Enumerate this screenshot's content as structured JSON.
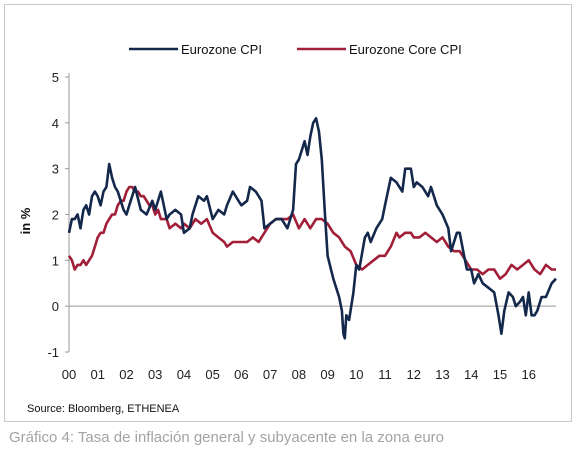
{
  "chart_data": {
    "type": "line",
    "title": "",
    "xlabel": "",
    "ylabel": "in %",
    "ylim": [
      -1,
      5
    ],
    "xlim": [
      2000,
      2016.95
    ],
    "y_ticks": [
      "5",
      "4",
      "3",
      "2",
      "1",
      "0",
      "-1"
    ],
    "x_ticks": [
      "00",
      "01",
      "02",
      "03",
      "04",
      "05",
      "06",
      "07",
      "08",
      "09",
      "10",
      "11",
      "12",
      "13",
      "14",
      "15",
      "16"
    ],
    "legend": "top-center",
    "grid": false,
    "series": [
      {
        "name": "Eurozone CPI",
        "color": "#14284b",
        "points": [
          [
            2000.0,
            1.6
          ],
          [
            2000.1,
            1.9
          ],
          [
            2000.2,
            1.9
          ],
          [
            2000.3,
            2.0
          ],
          [
            2000.4,
            1.7
          ],
          [
            2000.5,
            2.1
          ],
          [
            2000.6,
            2.2
          ],
          [
            2000.7,
            2.0
          ],
          [
            2000.8,
            2.4
          ],
          [
            2000.9,
            2.5
          ],
          [
            2001.0,
            2.4
          ],
          [
            2001.1,
            2.2
          ],
          [
            2001.2,
            2.5
          ],
          [
            2001.3,
            2.6
          ],
          [
            2001.4,
            3.1
          ],
          [
            2001.5,
            2.8
          ],
          [
            2001.6,
            2.6
          ],
          [
            2001.7,
            2.5
          ],
          [
            2001.8,
            2.3
          ],
          [
            2001.9,
            2.1
          ],
          [
            2002.0,
            2.0
          ],
          [
            2002.1,
            2.2
          ],
          [
            2002.3,
            2.6
          ],
          [
            2002.5,
            2.1
          ],
          [
            2002.7,
            2.0
          ],
          [
            2002.9,
            2.3
          ],
          [
            2003.0,
            2.1
          ],
          [
            2003.2,
            2.5
          ],
          [
            2003.4,
            1.9
          ],
          [
            2003.5,
            2.0
          ],
          [
            2003.7,
            2.1
          ],
          [
            2003.9,
            2.0
          ],
          [
            2004.0,
            1.6
          ],
          [
            2004.2,
            1.7
          ],
          [
            2004.3,
            2.0
          ],
          [
            2004.5,
            2.4
          ],
          [
            2004.7,
            2.3
          ],
          [
            2004.8,
            2.4
          ],
          [
            2005.0,
            1.9
          ],
          [
            2005.2,
            2.1
          ],
          [
            2005.4,
            2.0
          ],
          [
            2005.5,
            2.2
          ],
          [
            2005.7,
            2.5
          ],
          [
            2005.9,
            2.3
          ],
          [
            2006.0,
            2.2
          ],
          [
            2006.2,
            2.3
          ],
          [
            2006.3,
            2.6
          ],
          [
            2006.5,
            2.5
          ],
          [
            2006.7,
            2.3
          ],
          [
            2006.8,
            1.7
          ],
          [
            2007.0,
            1.8
          ],
          [
            2007.2,
            1.9
          ],
          [
            2007.4,
            1.9
          ],
          [
            2007.6,
            1.7
          ],
          [
            2007.8,
            2.1
          ],
          [
            2007.9,
            3.1
          ],
          [
            2008.0,
            3.2
          ],
          [
            2008.2,
            3.6
          ],
          [
            2008.3,
            3.3
          ],
          [
            2008.4,
            3.7
          ],
          [
            2008.5,
            4.0
          ],
          [
            2008.6,
            4.1
          ],
          [
            2008.7,
            3.8
          ],
          [
            2008.8,
            3.2
          ],
          [
            2008.9,
            2.1
          ],
          [
            2009.0,
            1.1
          ],
          [
            2009.2,
            0.6
          ],
          [
            2009.4,
            0.2
          ],
          [
            2009.5,
            -0.1
          ],
          [
            2009.55,
            -0.6
          ],
          [
            2009.6,
            -0.7
          ],
          [
            2009.65,
            -0.2
          ],
          [
            2009.75,
            -0.3
          ],
          [
            2009.9,
            0.3
          ],
          [
            2010.0,
            0.9
          ],
          [
            2010.1,
            0.8
          ],
          [
            2010.3,
            1.5
          ],
          [
            2010.4,
            1.6
          ],
          [
            2010.5,
            1.4
          ],
          [
            2010.7,
            1.7
          ],
          [
            2010.9,
            1.9
          ],
          [
            2011.0,
            2.2
          ],
          [
            2011.2,
            2.8
          ],
          [
            2011.4,
            2.7
          ],
          [
            2011.6,
            2.5
          ],
          [
            2011.7,
            3.0
          ],
          [
            2011.9,
            3.0
          ],
          [
            2012.0,
            2.6
          ],
          [
            2012.1,
            2.7
          ],
          [
            2012.3,
            2.6
          ],
          [
            2012.5,
            2.4
          ],
          [
            2012.6,
            2.6
          ],
          [
            2012.8,
            2.2
          ],
          [
            2013.0,
            2.0
          ],
          [
            2013.2,
            1.7
          ],
          [
            2013.3,
            1.2
          ],
          [
            2013.5,
            1.6
          ],
          [
            2013.6,
            1.6
          ],
          [
            2013.75,
            1.1
          ],
          [
            2013.85,
            0.8
          ],
          [
            2014.0,
            0.8
          ],
          [
            2014.1,
            0.5
          ],
          [
            2014.25,
            0.7
          ],
          [
            2014.4,
            0.5
          ],
          [
            2014.6,
            0.4
          ],
          [
            2014.8,
            0.3
          ],
          [
            2014.95,
            -0.2
          ],
          [
            2015.05,
            -0.6
          ],
          [
            2015.15,
            -0.1
          ],
          [
            2015.3,
            0.3
          ],
          [
            2015.45,
            0.2
          ],
          [
            2015.55,
            0.0
          ],
          [
            2015.7,
            0.1
          ],
          [
            2015.8,
            0.2
          ],
          [
            2015.9,
            -0.2
          ],
          [
            2016.0,
            0.3
          ],
          [
            2016.1,
            -0.2
          ],
          [
            2016.2,
            -0.2
          ],
          [
            2016.3,
            -0.1
          ],
          [
            2016.45,
            0.2
          ],
          [
            2016.6,
            0.2
          ],
          [
            2016.8,
            0.5
          ],
          [
            2016.95,
            0.6
          ]
        ]
      },
      {
        "name": "Eurozone Core CPI",
        "color": "#a21f3a",
        "points": [
          [
            2000.0,
            1.1
          ],
          [
            2000.1,
            1.0
          ],
          [
            2000.2,
            0.8
          ],
          [
            2000.3,
            0.9
          ],
          [
            2000.4,
            0.9
          ],
          [
            2000.5,
            1.0
          ],
          [
            2000.6,
            0.9
          ],
          [
            2000.7,
            1.0
          ],
          [
            2000.8,
            1.1
          ],
          [
            2000.9,
            1.3
          ],
          [
            2001.0,
            1.5
          ],
          [
            2001.1,
            1.6
          ],
          [
            2001.2,
            1.6
          ],
          [
            2001.3,
            1.8
          ],
          [
            2001.4,
            1.9
          ],
          [
            2001.5,
            2.0
          ],
          [
            2001.6,
            2.0
          ],
          [
            2001.7,
            2.2
          ],
          [
            2001.8,
            2.3
          ],
          [
            2001.9,
            2.3
          ],
          [
            2002.0,
            2.5
          ],
          [
            2002.1,
            2.6
          ],
          [
            2002.2,
            2.6
          ],
          [
            2002.3,
            2.5
          ],
          [
            2002.4,
            2.5
          ],
          [
            2002.5,
            2.4
          ],
          [
            2002.6,
            2.4
          ],
          [
            2002.7,
            2.3
          ],
          [
            2002.8,
            2.2
          ],
          [
            2002.9,
            2.2
          ],
          [
            2003.0,
            2.0
          ],
          [
            2003.1,
            2.1
          ],
          [
            2003.2,
            1.9
          ],
          [
            2003.4,
            1.9
          ],
          [
            2003.5,
            1.7
          ],
          [
            2003.7,
            1.8
          ],
          [
            2003.9,
            1.7
          ],
          [
            2004.0,
            1.8
          ],
          [
            2004.2,
            1.7
          ],
          [
            2004.4,
            1.9
          ],
          [
            2004.6,
            1.8
          ],
          [
            2004.8,
            1.9
          ],
          [
            2005.0,
            1.6
          ],
          [
            2005.2,
            1.5
          ],
          [
            2005.4,
            1.4
          ],
          [
            2005.5,
            1.3
          ],
          [
            2005.7,
            1.4
          ],
          [
            2005.9,
            1.4
          ],
          [
            2006.0,
            1.4
          ],
          [
            2006.2,
            1.4
          ],
          [
            2006.4,
            1.5
          ],
          [
            2006.6,
            1.4
          ],
          [
            2006.8,
            1.6
          ],
          [
            2007.0,
            1.8
          ],
          [
            2007.2,
            1.9
          ],
          [
            2007.4,
            1.9
          ],
          [
            2007.6,
            1.9
          ],
          [
            2007.8,
            2.0
          ],
          [
            2008.0,
            1.7
          ],
          [
            2008.2,
            1.9
          ],
          [
            2008.4,
            1.7
          ],
          [
            2008.6,
            1.9
          ],
          [
            2008.8,
            1.9
          ],
          [
            2009.0,
            1.8
          ],
          [
            2009.2,
            1.6
          ],
          [
            2009.4,
            1.5
          ],
          [
            2009.6,
            1.3
          ],
          [
            2009.8,
            1.2
          ],
          [
            2010.0,
            0.9
          ],
          [
            2010.2,
            0.8
          ],
          [
            2010.4,
            0.9
          ],
          [
            2010.6,
            1.0
          ],
          [
            2010.8,
            1.1
          ],
          [
            2011.0,
            1.1
          ],
          [
            2011.2,
            1.3
          ],
          [
            2011.4,
            1.6
          ],
          [
            2011.5,
            1.5
          ],
          [
            2011.7,
            1.6
          ],
          [
            2011.9,
            1.6
          ],
          [
            2012.0,
            1.5
          ],
          [
            2012.2,
            1.5
          ],
          [
            2012.4,
            1.6
          ],
          [
            2012.6,
            1.5
          ],
          [
            2012.8,
            1.4
          ],
          [
            2013.0,
            1.5
          ],
          [
            2013.2,
            1.3
          ],
          [
            2013.4,
            1.2
          ],
          [
            2013.6,
            1.2
          ],
          [
            2013.8,
            1.0
          ],
          [
            2014.0,
            0.8
          ],
          [
            2014.2,
            0.8
          ],
          [
            2014.4,
            0.7
          ],
          [
            2014.6,
            0.8
          ],
          [
            2014.8,
            0.8
          ],
          [
            2015.0,
            0.6
          ],
          [
            2015.2,
            0.7
          ],
          [
            2015.4,
            0.9
          ],
          [
            2015.6,
            0.8
          ],
          [
            2015.8,
            0.9
          ],
          [
            2016.0,
            1.0
          ],
          [
            2016.2,
            0.8
          ],
          [
            2016.4,
            0.7
          ],
          [
            2016.6,
            0.9
          ],
          [
            2016.8,
            0.8
          ],
          [
            2016.95,
            0.8
          ]
        ]
      }
    ]
  },
  "source": "Source: Bloomberg, ETHENEA",
  "caption": "Gráfico 4: Tasa de inflación general y subyacente en la zona euro"
}
